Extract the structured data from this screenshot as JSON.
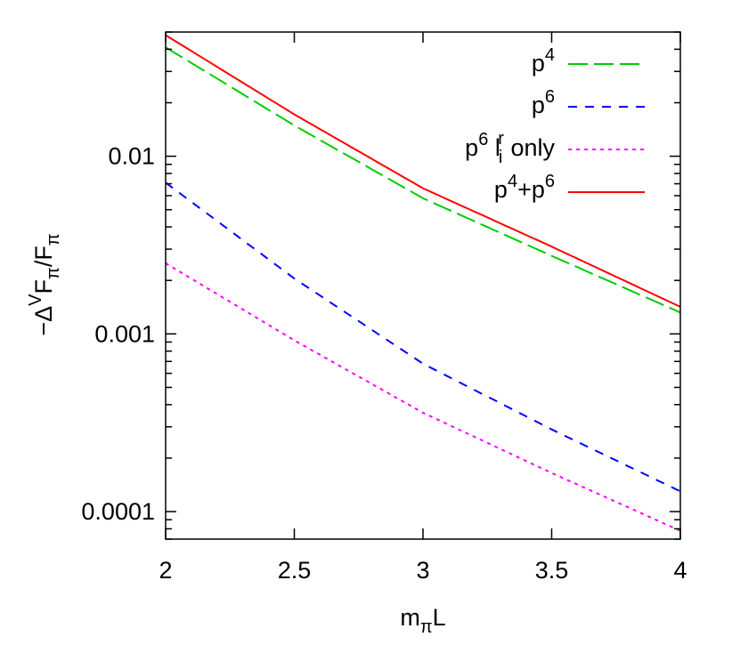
{
  "chart_data": {
    "type": "line",
    "xlabel": "mπL",
    "ylabel": "−ΔVFπ/Fπ",
    "xlim": [
      2,
      4
    ],
    "ylim": [
      7e-05,
      0.05
    ],
    "yscale": "log",
    "grid": false,
    "legend_position": "top-right",
    "x_ticks": [
      2,
      2.5,
      3,
      3.5,
      4
    ],
    "x_tick_labels": [
      "2",
      "2.5",
      "3",
      "3.5",
      "4"
    ],
    "y_ticks": [
      0.0001,
      0.001,
      0.01
    ],
    "y_tick_labels": [
      "0.0001",
      "0.001",
      "0.01"
    ],
    "series": [
      {
        "name": "p4",
        "color": "#00cc00",
        "dash": "long-dash",
        "x": [
          2.0,
          2.5,
          3.0,
          3.5,
          4.0
        ],
        "y": [
          0.041,
          0.0149,
          0.0058,
          0.00275,
          0.00132
        ]
      },
      {
        "name": "p6",
        "color": "#0000ff",
        "dash": "dash",
        "x": [
          2.0,
          2.5,
          3.0,
          3.5,
          4.0
        ],
        "y": [
          0.0071,
          0.00205,
          0.00068,
          0.00029,
          0.00013
        ]
      },
      {
        "name": "p6 lir only",
        "color": "#ff00ff",
        "dash": "dot",
        "x": [
          2.0,
          2.5,
          3.0,
          3.5,
          4.0
        ],
        "y": [
          0.0025,
          0.00092,
          0.00036,
          0.000165,
          7.8e-05
        ]
      },
      {
        "name": "p4+p6",
        "color": "#ff0000",
        "dash": "solid",
        "x": [
          2.0,
          2.5,
          3.0,
          3.5,
          4.0
        ],
        "y": [
          0.048,
          0.0172,
          0.0066,
          0.0031,
          0.00142
        ]
      }
    ]
  }
}
